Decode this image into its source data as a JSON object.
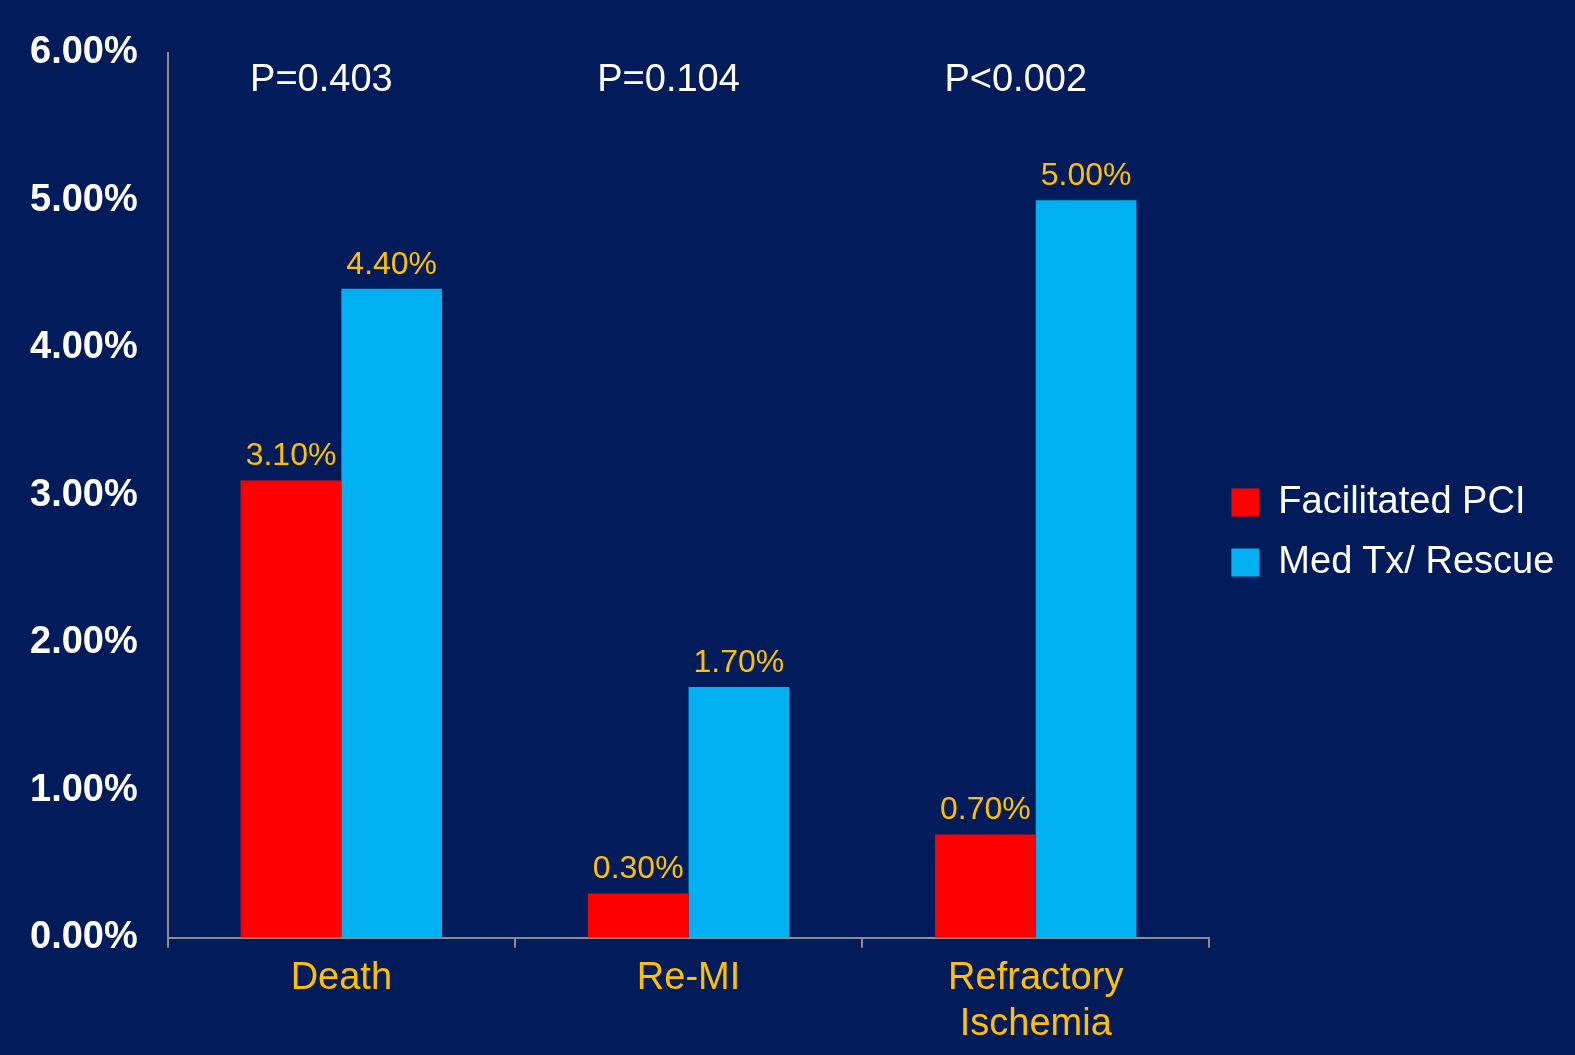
{
  "chart_data": {
    "type": "bar",
    "categories": [
      "Death",
      "Re-MI",
      "Refractory Ischemia"
    ],
    "series": [
      {
        "name": "Facilitated PCI",
        "color": "#ff0000",
        "values": [
          3.1,
          0.3,
          0.7
        ],
        "value_labels": [
          "3.10%",
          "0.30%",
          "0.70%"
        ]
      },
      {
        "name": "Med Tx/ Rescue",
        "color": "#00b0f0",
        "values": [
          4.4,
          1.7,
          5.0
        ],
        "value_labels": [
          "4.40%",
          "1.70%",
          "5.00%"
        ]
      }
    ],
    "ylim": [
      0,
      6
    ],
    "yticks": [
      {
        "value": 0,
        "label": "0.00%"
      },
      {
        "value": 1,
        "label": "1.00%"
      },
      {
        "value": 2,
        "label": "2.00%"
      },
      {
        "value": 3,
        "label": "3.00%"
      },
      {
        "value": 4,
        "label": "4.00%"
      },
      {
        "value": 5,
        "label": "5.00%"
      },
      {
        "value": 6,
        "label": "6.00%"
      }
    ],
    "annotations": [
      "P=0.403",
      "P=0.104",
      "P<0.002"
    ],
    "legend": "right",
    "grid": false
  }
}
